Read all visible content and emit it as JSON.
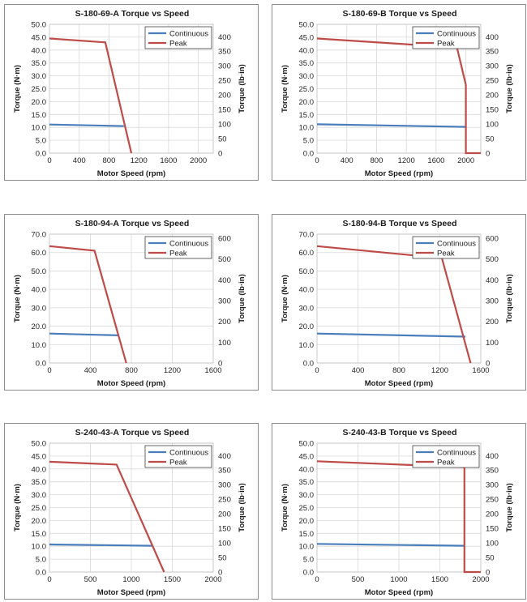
{
  "series_colors": {
    "Continuous": "#4a7ebb",
    "Peak": "#be4b48"
  },
  "chart_data": [
    {
      "type": "line",
      "title": "S-180-69-A Torque vs Speed",
      "xlabel": "Motor Speed (rpm)",
      "ylabel": "Torque (N·m)",
      "y2label": "Torque (lb·in)",
      "xlim": [
        0,
        2200
      ],
      "xticks": [
        0,
        400,
        800,
        1200,
        1600,
        2000
      ],
      "ylim": [
        0,
        50
      ],
      "yticks": [
        "0.0",
        "5.0",
        "10.0",
        "15.0",
        "20.0",
        "25.0",
        "30.0",
        "35.0",
        "40.0",
        "45.0",
        "50.0"
      ],
      "y2lim": [
        0,
        442.5
      ],
      "y2ticks": [
        0,
        50,
        100,
        150,
        200,
        250,
        300,
        350,
        400
      ],
      "legend": "top-right",
      "grid": true,
      "series": [
        {
          "name": "Continuous",
          "x": [
            0,
            1000
          ],
          "y": [
            11.1,
            10.5
          ]
        },
        {
          "name": "Peak",
          "x": [
            0,
            750,
            1100
          ],
          "y": [
            44.5,
            43.0,
            0
          ]
        }
      ]
    },
    {
      "type": "line",
      "title": "S-180-69-B Torque vs Speed",
      "xlabel": "Motor Speed (rpm)",
      "ylabel": "Torque (N·m)",
      "y2label": "Torque (lb·in)",
      "xlim": [
        0,
        2200
      ],
      "xticks": [
        0,
        400,
        800,
        1200,
        1600,
        2000
      ],
      "ylim": [
        0,
        50
      ],
      "yticks": [
        "0.0",
        "5.0",
        "10.0",
        "15.0",
        "20.0",
        "25.0",
        "30.0",
        "35.0",
        "40.0",
        "45.0",
        "50.0"
      ],
      "y2lim": [
        0,
        442.5
      ],
      "y2ticks": [
        0,
        50,
        100,
        150,
        200,
        250,
        300,
        350,
        400
      ],
      "legend": "top-right",
      "grid": true,
      "series": [
        {
          "name": "Continuous",
          "x": [
            0,
            2000
          ],
          "y": [
            11.2,
            10.2
          ]
        },
        {
          "name": "Peak",
          "x": [
            0,
            1880,
            2000,
            2000,
            2200
          ],
          "y": [
            44.5,
            41.0,
            26.5,
            0,
            0
          ]
        }
      ]
    },
    {
      "type": "line",
      "title": "S-180-94-A Torque vs Speed",
      "xlabel": "Motor Speed (rpm)",
      "ylabel": "Torque (N·m)",
      "y2label": "Torque (lb·in)",
      "xlim": [
        0,
        1600
      ],
      "xticks": [
        0,
        400,
        800,
        1200,
        1600
      ],
      "ylim": [
        0,
        70
      ],
      "yticks": [
        "0.0",
        "10.0",
        "20.0",
        "30.0",
        "40.0",
        "50.0",
        "60.0",
        "70.0"
      ],
      "y2lim": [
        0,
        619.6
      ],
      "y2ticks": [
        0,
        100,
        200,
        300,
        400,
        500,
        600
      ],
      "legend": "top-right",
      "grid": true,
      "series": [
        {
          "name": "Continuous",
          "x": [
            0,
            680
          ],
          "y": [
            16.0,
            15.0
          ]
        },
        {
          "name": "Peak",
          "x": [
            0,
            440,
            750
          ],
          "y": [
            63.5,
            61.0,
            0
          ]
        }
      ]
    },
    {
      "type": "line",
      "title": "S-180-94-B Torque vs Speed",
      "xlabel": "Motor Speed (rpm)",
      "ylabel": "Torque (N·m)",
      "y2label": "Torque (lb·in)",
      "xlim": [
        0,
        1600
      ],
      "xticks": [
        0,
        400,
        800,
        1200,
        1600
      ],
      "ylim": [
        0,
        70
      ],
      "yticks": [
        "0.0",
        "10.0",
        "20.0",
        "30.0",
        "40.0",
        "50.0",
        "60.0",
        "70.0"
      ],
      "y2lim": [
        0,
        619.6
      ],
      "y2ticks": [
        0,
        100,
        200,
        300,
        400,
        500,
        600
      ],
      "legend": "top-right",
      "grid": true,
      "series": [
        {
          "name": "Continuous",
          "x": [
            0,
            1450
          ],
          "y": [
            16.0,
            14.3
          ]
        },
        {
          "name": "Peak",
          "x": [
            0,
            1220,
            1500
          ],
          "y": [
            63.5,
            57.0,
            0
          ]
        }
      ]
    },
    {
      "type": "line",
      "title": "S-240-43-A Torque vs Speed",
      "xlabel": "Motor Speed (rpm)",
      "ylabel": "Torque (N·m)",
      "y2label": "Torque (lb·in)",
      "xlim": [
        0,
        2000
      ],
      "xticks": [
        0,
        500,
        1000,
        1500,
        2000
      ],
      "ylim": [
        0,
        50
      ],
      "yticks": [
        "0.0",
        "5.0",
        "10.0",
        "15.0",
        "20.0",
        "25.0",
        "30.0",
        "35.0",
        "40.0",
        "45.0",
        "50.0"
      ],
      "y2lim": [
        0,
        442.5
      ],
      "y2ticks": [
        0,
        50,
        100,
        150,
        200,
        250,
        300,
        350,
        400
      ],
      "legend": "top-right",
      "grid": true,
      "series": [
        {
          "name": "Continuous",
          "x": [
            0,
            1250
          ],
          "y": [
            10.7,
            10.2
          ]
        },
        {
          "name": "Peak",
          "x": [
            0,
            820,
            1400
          ],
          "y": [
            42.8,
            41.7,
            0
          ]
        }
      ]
    },
    {
      "type": "line",
      "title": "S-240-43-B Torque vs Speed",
      "xlabel": "Motor Speed (rpm)",
      "ylabel": "Torque (N·m)",
      "y2label": "Torque (lb·in)",
      "xlim": [
        0,
        2000
      ],
      "xticks": [
        0,
        500,
        1000,
        1500,
        2000
      ],
      "ylim": [
        0,
        50
      ],
      "yticks": [
        "0.0",
        "5.0",
        "10.0",
        "15.0",
        "20.0",
        "25.0",
        "30.0",
        "35.0",
        "40.0",
        "45.0",
        "50.0"
      ],
      "y2lim": [
        0,
        442.5
      ],
      "y2ticks": [
        0,
        50,
        100,
        150,
        200,
        250,
        300,
        350,
        400
      ],
      "legend": "top-right",
      "grid": true,
      "series": [
        {
          "name": "Continuous",
          "x": [
            0,
            1800
          ],
          "y": [
            10.9,
            10.2
          ]
        },
        {
          "name": "Peak",
          "x": [
            0,
            1800,
            1800,
            2000
          ],
          "y": [
            43.0,
            40.7,
            0,
            0
          ]
        }
      ]
    }
  ]
}
